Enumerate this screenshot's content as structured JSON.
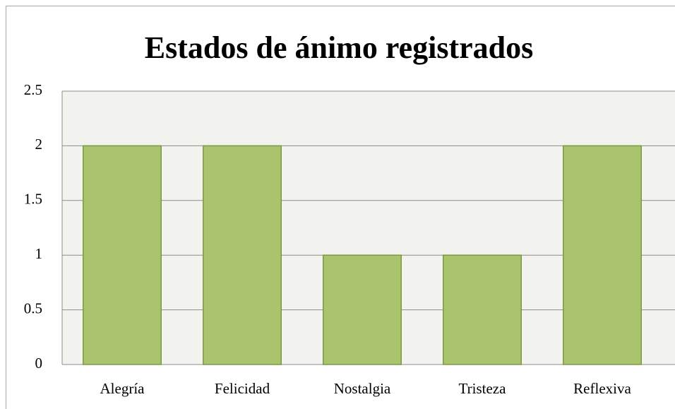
{
  "chart_data": {
    "type": "bar",
    "title": "Estados de ánimo registrados",
    "categories": [
      "Alegría",
      "Felicidad",
      "Nostalgia",
      "Tristeza",
      "Reflexiva"
    ],
    "values": [
      2,
      2,
      1,
      1,
      2
    ],
    "color": "#a9c46c",
    "ylim": [
      0,
      2.5
    ],
    "yticks": [
      0,
      0.5,
      1,
      1.5,
      2,
      2.5
    ],
    "grid": true
  }
}
